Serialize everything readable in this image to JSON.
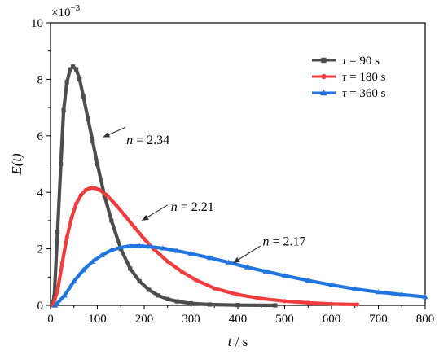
{
  "chart_data": {
    "type": "line",
    "xlabel_var": "t",
    "xlabel_unit": " / s",
    "ylabel": "E(t)",
    "y_multiplier": "×10",
    "y_multiplier_exp": "−3",
    "xlim": [
      0,
      800
    ],
    "ylim": [
      0,
      10
    ],
    "x_ticks": [
      "0",
      "100",
      "200",
      "300",
      "400",
      "500",
      "600",
      "700",
      "800"
    ],
    "y_ticks": [
      "0",
      "2",
      "4",
      "6",
      "8",
      "10"
    ],
    "legend_position": "top-right",
    "series": [
      {
        "name_var": "τ",
        "name_rest": " = 90 s",
        "color": "#4d4d4d",
        "marker": "square",
        "points": [
          [
            3,
            0
          ],
          [
            8,
            0.3
          ],
          [
            15,
            2.6
          ],
          [
            22,
            5.0
          ],
          [
            28,
            6.9
          ],
          [
            35,
            7.9
          ],
          [
            42,
            8.35
          ],
          [
            48,
            8.45
          ],
          [
            55,
            8.35
          ],
          [
            62,
            8.0
          ],
          [
            70,
            7.4
          ],
          [
            80,
            6.6
          ],
          [
            90,
            5.8
          ],
          [
            100,
            5.0
          ],
          [
            115,
            3.9
          ],
          [
            130,
            3.0
          ],
          [
            150,
            2.0
          ],
          [
            170,
            1.3
          ],
          [
            190,
            0.85
          ],
          [
            210,
            0.55
          ],
          [
            230,
            0.35
          ],
          [
            250,
            0.22
          ],
          [
            270,
            0.14
          ],
          [
            300,
            0.07
          ],
          [
            340,
            0.03
          ],
          [
            400,
            0.01
          ],
          [
            480,
            0.0
          ]
        ]
      },
      {
        "name_var": "τ",
        "name_rest": " = 180 s",
        "color": "#f03c3c",
        "marker": "circle",
        "points": [
          [
            5,
            0
          ],
          [
            15,
            0.5
          ],
          [
            25,
            1.5
          ],
          [
            35,
            2.4
          ],
          [
            45,
            3.1
          ],
          [
            55,
            3.6
          ],
          [
            65,
            3.9
          ],
          [
            75,
            4.08
          ],
          [
            85,
            4.15
          ],
          [
            95,
            4.15
          ],
          [
            105,
            4.08
          ],
          [
            120,
            3.9
          ],
          [
            140,
            3.55
          ],
          [
            160,
            3.15
          ],
          [
            180,
            2.75
          ],
          [
            200,
            2.35
          ],
          [
            220,
            2.0
          ],
          [
            250,
            1.55
          ],
          [
            280,
            1.2
          ],
          [
            310,
            0.9
          ],
          [
            350,
            0.6
          ],
          [
            400,
            0.38
          ],
          [
            450,
            0.24
          ],
          [
            500,
            0.15
          ],
          [
            550,
            0.09
          ],
          [
            600,
            0.05
          ],
          [
            655,
            0.03
          ]
        ]
      },
      {
        "name_var": "τ",
        "name_rest": " = 360 s",
        "color": "#2175e0",
        "marker": "triangle",
        "points": [
          [
            10,
            0
          ],
          [
            30,
            0.35
          ],
          [
            50,
            0.85
          ],
          [
            70,
            1.25
          ],
          [
            90,
            1.55
          ],
          [
            110,
            1.78
          ],
          [
            130,
            1.95
          ],
          [
            150,
            2.05
          ],
          [
            170,
            2.1
          ],
          [
            190,
            2.1
          ],
          [
            210,
            2.08
          ],
          [
            240,
            2.02
          ],
          [
            270,
            1.93
          ],
          [
            300,
            1.83
          ],
          [
            340,
            1.68
          ],
          [
            380,
            1.52
          ],
          [
            420,
            1.35
          ],
          [
            460,
            1.2
          ],
          [
            500,
            1.05
          ],
          [
            550,
            0.88
          ],
          [
            600,
            0.72
          ],
          [
            650,
            0.58
          ],
          [
            700,
            0.47
          ],
          [
            750,
            0.38
          ],
          [
            800,
            0.3
          ]
        ]
      }
    ],
    "annotations": [
      {
        "var": "n",
        "rest": " = 2.34",
        "text_x": 162,
        "text_y": 5.7,
        "tip_x": 112,
        "tip_y": 5.95,
        "from_x": 160,
        "from_y": 6.3
      },
      {
        "var": "n",
        "rest": " = 2.21",
        "text_x": 257,
        "text_y": 3.35,
        "tip_x": 195,
        "tip_y": 3.0,
        "from_x": 250,
        "from_y": 3.55
      },
      {
        "var": "n",
        "rest": " = 2.17",
        "text_x": 453,
        "text_y": 2.12,
        "tip_x": 390,
        "tip_y": 1.5,
        "from_x": 448,
        "from_y": 2.1
      }
    ]
  }
}
